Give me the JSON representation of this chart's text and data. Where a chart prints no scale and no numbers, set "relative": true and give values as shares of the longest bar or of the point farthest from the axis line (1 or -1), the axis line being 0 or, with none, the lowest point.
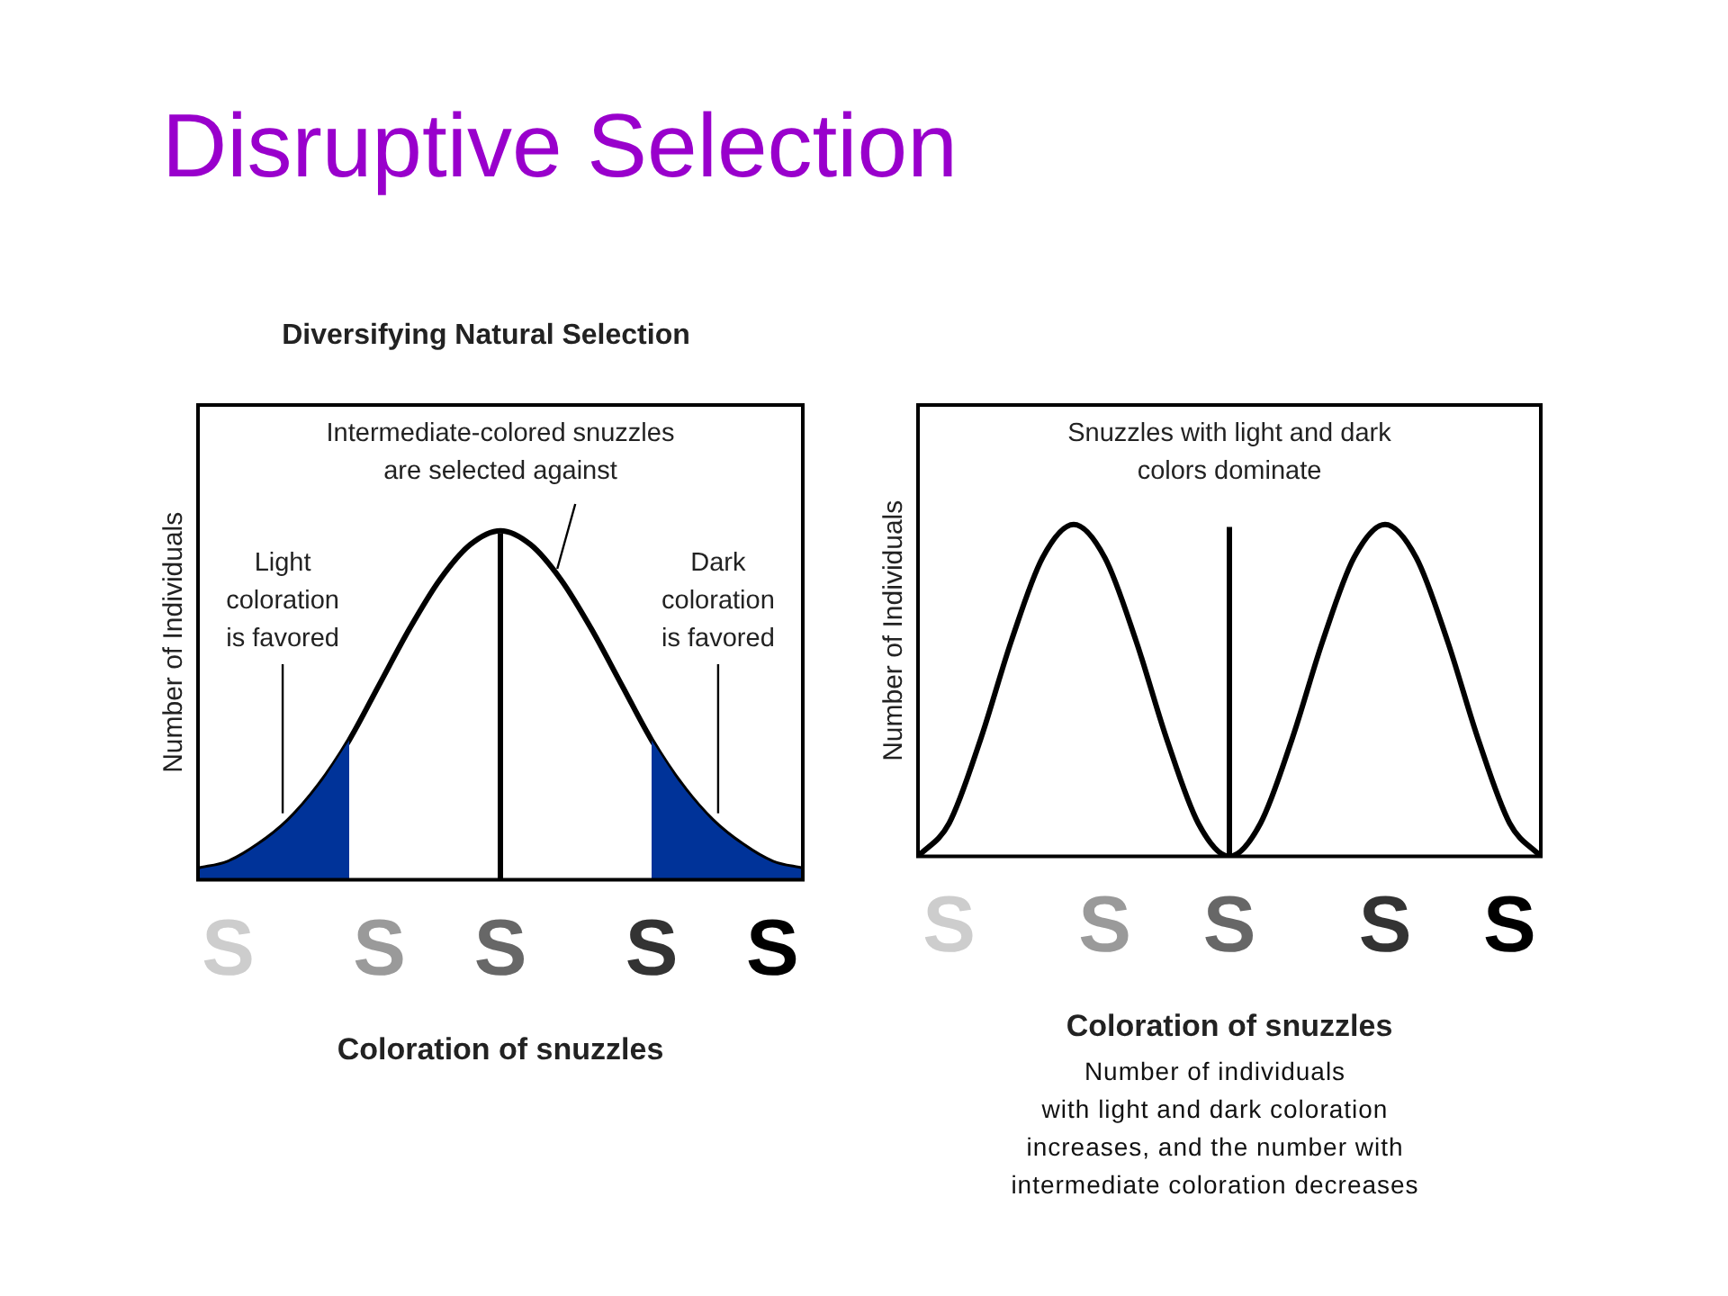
{
  "chart_data": [
    {
      "type": "line",
      "title": "Disruptive Selection",
      "subtitle": "Diversifying Natural Selection",
      "xlabel": "Coloration of snuzzles",
      "ylabel": "Number of Individuals",
      "relative": true,
      "categories": [
        null,
        "S",
        null,
        null,
        null,
        null,
        "S",
        null,
        null,
        null,
        "S",
        null,
        null,
        null,
        null,
        "S",
        null,
        null,
        null,
        "S",
        null
      ],
      "series": [
        {
          "type": "area",
          "color": "#003399",
          "values": [
            0.03,
            0.05,
            0.1,
            0.17,
            0.27,
            0.4,
            null,
            null,
            null,
            null,
            null,
            null,
            null,
            null,
            null,
            null,
            null,
            null,
            null,
            null,
            null
          ]
        },
        {
          "type": "area",
          "color": "#003399",
          "values": [
            null,
            null,
            null,
            null,
            null,
            null,
            null,
            null,
            null,
            null,
            null,
            null,
            null,
            null,
            null,
            0.4,
            0.27,
            0.17,
            0.1,
            0.05,
            0.03
          ]
        },
        {
          "color": "#000000",
          "values": [
            0.03,
            0.05,
            0.1,
            0.17,
            0.27,
            0.4,
            0.56,
            0.72,
            0.86,
            0.96,
            1,
            0.96,
            0.86,
            0.72,
            0.56,
            0.4,
            0.27,
            0.17,
            0.1,
            0.05,
            0.03
          ]
        }
      ],
      "annotations": [
        "Intermediate-colored snuzzles\nare selected against",
        "Light\ncoloration\nis favored",
        "Dark\ncoloration\nis favored"
      ]
    },
    {
      "type": "line",
      "xlabel": "Coloration of snuzzles",
      "ylabel": "Number of Individuals",
      "relative": true,
      "categories": [
        null,
        "S",
        null,
        null,
        null,
        null,
        "S",
        null,
        null,
        null,
        "S",
        null,
        null,
        null,
        null,
        "S",
        null,
        null,
        null,
        "S",
        null
      ],
      "series": [
        {
          "color": "#000000",
          "values": [
            0,
            0.1,
            0.35,
            0.65,
            0.9,
            1,
            0.9,
            0.65,
            0.35,
            0.1,
            0,
            0.1,
            0.35,
            0.65,
            0.9,
            1,
            0.9,
            0.65,
            0.35,
            0.1,
            0
          ]
        }
      ],
      "annotations": [
        "Snuzzles with light and dark\ncolors dominate",
        "Number of individuals\nwith light and dark coloration\nincreases, and the number with\nintermediate coloration decreases"
      ]
    }
  ]
}
